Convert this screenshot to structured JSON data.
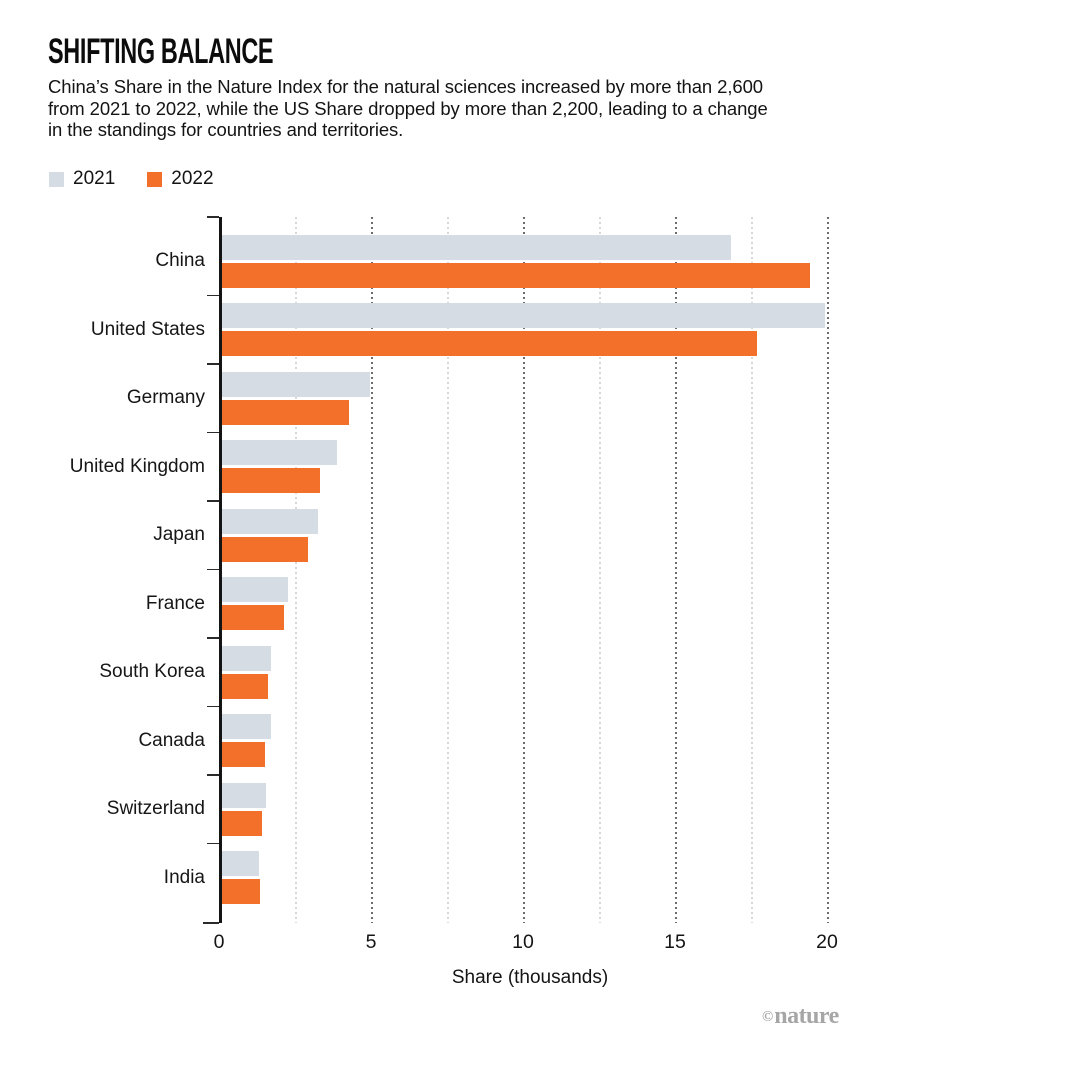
{
  "chart_data": {
    "type": "bar",
    "orientation": "horizontal",
    "title": "SHIFTING BALANCE",
    "subtitle_lines": [
      "China’s Share in the Nature Index for the natural sciences increased by more than 2,600",
      "from 2021 to 2022, while the US Share dropped by more than 2,200, leading to a change",
      "in the standings for countries and territories."
    ],
    "categories": [
      "China",
      "United States",
      "Germany",
      "United Kingdom",
      "Japan",
      "France",
      "South Korea",
      "Canada",
      "Switzerland",
      "India"
    ],
    "series": [
      {
        "name": "2021",
        "color": "#d6dce4",
        "values": [
          16.75,
          19.86,
          4.88,
          3.81,
          3.19,
          2.19,
          1.63,
          1.62,
          1.48,
          1.22
        ]
      },
      {
        "name": "2022",
        "color": "#f3702a",
        "values": [
          19.37,
          17.61,
          4.19,
          3.25,
          2.84,
          2.04,
          1.52,
          1.43,
          1.32,
          1.26
        ]
      }
    ],
    "xlabel": "Share (thousands)",
    "xlim": [
      0,
      20.6
    ],
    "xticks": [
      0,
      5,
      10,
      15,
      20
    ],
    "minor_gridlines": [
      2.5,
      7.5,
      12.5,
      17.5
    ],
    "grid": true,
    "legend_position": "top-left",
    "units": "thousands",
    "axis_color": "#141414",
    "major_grid_color": "#6e6e6e",
    "minor_grid_color": "#d7d7d7"
  },
  "footer": {
    "credit_symbol": "©",
    "credit_name": "nature"
  }
}
